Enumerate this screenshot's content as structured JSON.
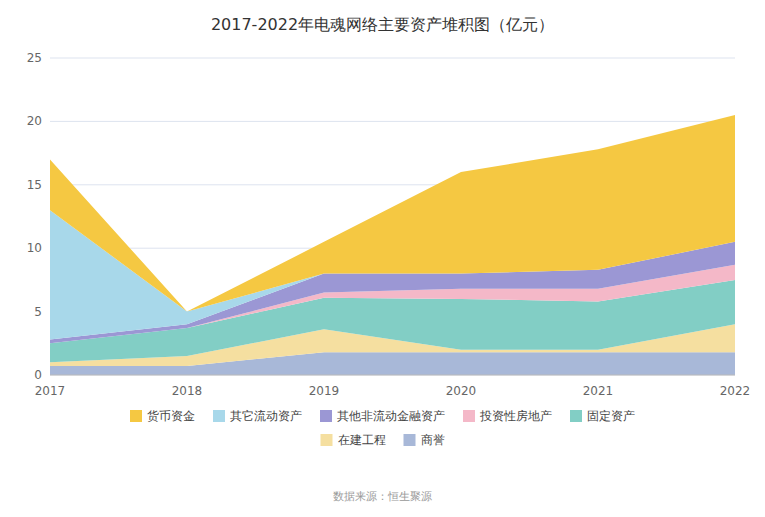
{
  "chart_data": {
    "type": "area",
    "stacked": true,
    "title": "2017-2022年电魂网络主要资产堆积图（亿元）",
    "source": "数据来源：恒生聚源",
    "x": [
      2017,
      2018,
      2019,
      2020,
      2021,
      2022
    ],
    "xlim": [
      2017,
      2022
    ],
    "xticks": [
      2017,
      2018,
      2019,
      2020,
      2021,
      2022
    ],
    "ylim": [
      0,
      25
    ],
    "yticks": [
      0,
      5,
      10,
      15,
      20,
      25
    ],
    "grid": true,
    "legend": "bottom",
    "series": [
      {
        "name": "商誉",
        "color": "#A8B8D8",
        "values": [
          0.7,
          0.7,
          1.8,
          1.8,
          1.8,
          1.8
        ]
      },
      {
        "name": "在建工程",
        "color": "#F5DFA0",
        "values": [
          0.3,
          0.8,
          1.8,
          0.2,
          0.2,
          2.2
        ]
      },
      {
        "name": "固定资产",
        "color": "#82CEC5",
        "values": [
          1.5,
          2.2,
          2.5,
          4.0,
          3.8,
          3.5
        ]
      },
      {
        "name": "投资性房地产",
        "color": "#F4B8C8",
        "values": [
          0.0,
          0.0,
          0.4,
          0.8,
          1.0,
          1.2
        ]
      },
      {
        "name": "其他非流动金融资产",
        "color": "#9B97D4",
        "values": [
          0.3,
          0.3,
          1.5,
          1.2,
          1.5,
          1.8
        ]
      },
      {
        "name": "其它流动资产",
        "color": "#A8D8EA",
        "values": [
          10.2,
          1.0,
          0.0,
          0.0,
          0.0,
          0.0
        ]
      },
      {
        "name": "货币资金",
        "color": "#F5C842",
        "values": [
          4.0,
          0.0,
          2.5,
          8.0,
          9.5,
          10.0
        ]
      }
    ]
  }
}
